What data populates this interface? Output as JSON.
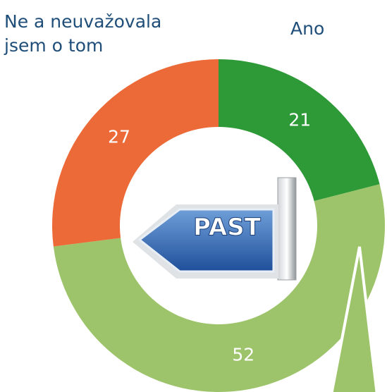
{
  "chart_data": {
    "type": "donut",
    "categories": [
      "Ano",
      null,
      "Ne a neuvažovala jsem o tom"
    ],
    "values": [
      21,
      52,
      27
    ],
    "colors": [
      "#2e9a37",
      "#9dc46a",
      "#ec6a37"
    ]
  },
  "sign": {
    "text": "PAST"
  }
}
